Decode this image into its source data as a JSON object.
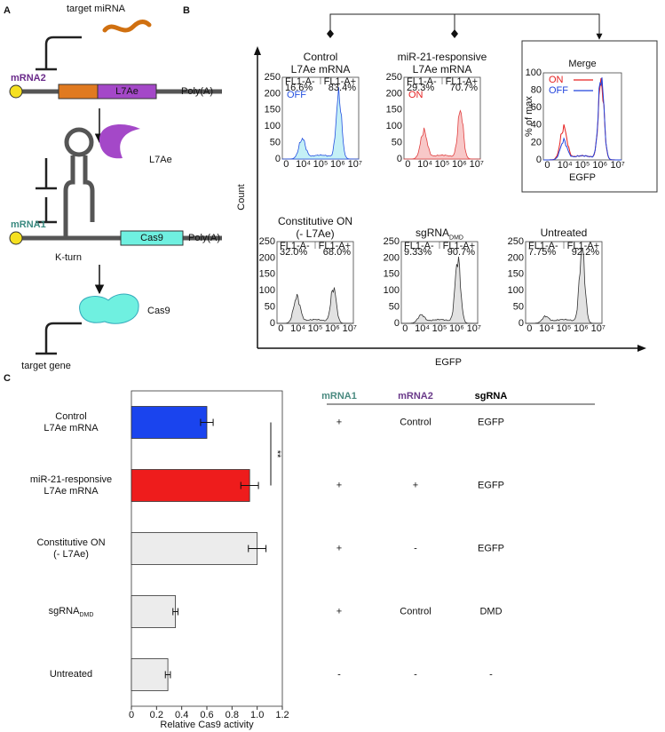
{
  "panel_a": {
    "label": "A",
    "target_mirna": "target miRNA",
    "mrna2": "mRNA2",
    "l7ae_gene": "L7Ae",
    "polya_1": "Poly(A)",
    "l7ae_protein": "L7Ae",
    "mrna1": "mRNA1",
    "cas9_gene": "Cas9",
    "polya_2": "Poly(A)",
    "kturn": "K-turn",
    "cas9_protein": "Cas9",
    "target_gene": "target gene"
  },
  "panel_b": {
    "label": "B",
    "y_label": "Count",
    "x_label": "EGFP",
    "yticks": [
      "0",
      "50",
      "100",
      "150",
      "200",
      "250"
    ],
    "xticks": [
      "0",
      "10⁴",
      "10⁵",
      "10⁶",
      "10⁷"
    ],
    "histograms": [
      {
        "title": "Control\nL7Ae mRNA",
        "gate_neg": "FL1-A-",
        "pct_neg": "16.6%",
        "gate_pos": "FL1-A+",
        "pct_pos": "83.4%",
        "state": "OFF",
        "state_color": "#2450e0",
        "fill": "#c4f0f6",
        "line": "#2450e0"
      },
      {
        "title": "miR-21-responsive\nL7Ae mRNA",
        "gate_neg": "FL1-A-",
        "pct_neg": "29.3%",
        "gate_pos": "FL1-A+",
        "pct_pos": "70.7%",
        "state": "ON",
        "state_color": "#e62020",
        "fill": "#f8c8c8",
        "line": "#e04040"
      },
      {
        "title": "Constitutive ON\n(- L7Ae)",
        "gate_neg": "FL1-A-",
        "pct_neg": "32.0%",
        "gate_pos": "FL1-A+",
        "pct_pos": "68.0%",
        "fill": "#e2e2e2",
        "line": "#333333"
      },
      {
        "title": "sgRNA",
        "title_sub": "DMD",
        "gate_neg": "FL1-A-",
        "pct_neg": "9.33%",
        "gate_pos": "FL1-A+",
        "pct_pos": "90.7%",
        "fill": "#e2e2e2",
        "line": "#333333"
      },
      {
        "title": "Untreated",
        "gate_neg": "FL1-A-",
        "pct_neg": "7.75%",
        "gate_pos": "FL1-A+",
        "pct_pos": "92.2%",
        "fill": "#e2e2e2",
        "line": "#333333"
      }
    ],
    "merge": {
      "title": "Merge",
      "y_label": "% of max",
      "x_label": "EGFP",
      "yticks": [
        "0",
        "20",
        "40",
        "60",
        "80",
        "100"
      ],
      "xticks": [
        "0",
        "10⁴",
        "10⁵",
        "10⁶",
        "10⁷"
      ],
      "legend": [
        {
          "name": "ON",
          "color": "#e62020"
        },
        {
          "name": "OFF",
          "color": "#2244dd"
        }
      ]
    }
  },
  "panel_c_label": "C",
  "chart_data": {
    "type": "bar",
    "orientation": "horizontal",
    "categories": [
      "Control\nL7Ae mRNA",
      "miR-21-responsive\nL7Ae mRNA",
      "Constitutive ON\n(- L7Ae)",
      "sgRNA",
      "Untreated"
    ],
    "category_subscripts": [
      null,
      null,
      null,
      "DMD",
      null
    ],
    "values": [
      0.6,
      0.94,
      1.0,
      0.35,
      0.29
    ],
    "errors": [
      0.05,
      0.07,
      0.07,
      0.02,
      0.02
    ],
    "colors": [
      "#1a44ee",
      "#ee1c1c",
      "#ececec",
      "#ececec",
      "#ececec"
    ],
    "xlim": [
      0,
      1.2
    ],
    "xticks": [
      0,
      0.2,
      0.4,
      0.6,
      0.8,
      {
        "value": 1,
        "label": "1.0"
      },
      1.2
    ],
    "x_label": "Relative Cas9 activity",
    "annotations": [
      {
        "text": "**",
        "between": [
          0,
          1
        ]
      }
    ]
  },
  "table": {
    "headers": [
      "mRNA1",
      "mRNA2",
      "sgRNA"
    ],
    "header_colors": [
      "#4a8a80",
      "#6a3a8a",
      "#000000"
    ],
    "rows": [
      [
        "+",
        "Control",
        "EGFP"
      ],
      [
        "+",
        "+",
        "EGFP"
      ],
      [
        "+",
        "-",
        "EGFP"
      ],
      [
        "+",
        "Control",
        "DMD"
      ],
      [
        "-",
        "-",
        "-"
      ]
    ]
  }
}
